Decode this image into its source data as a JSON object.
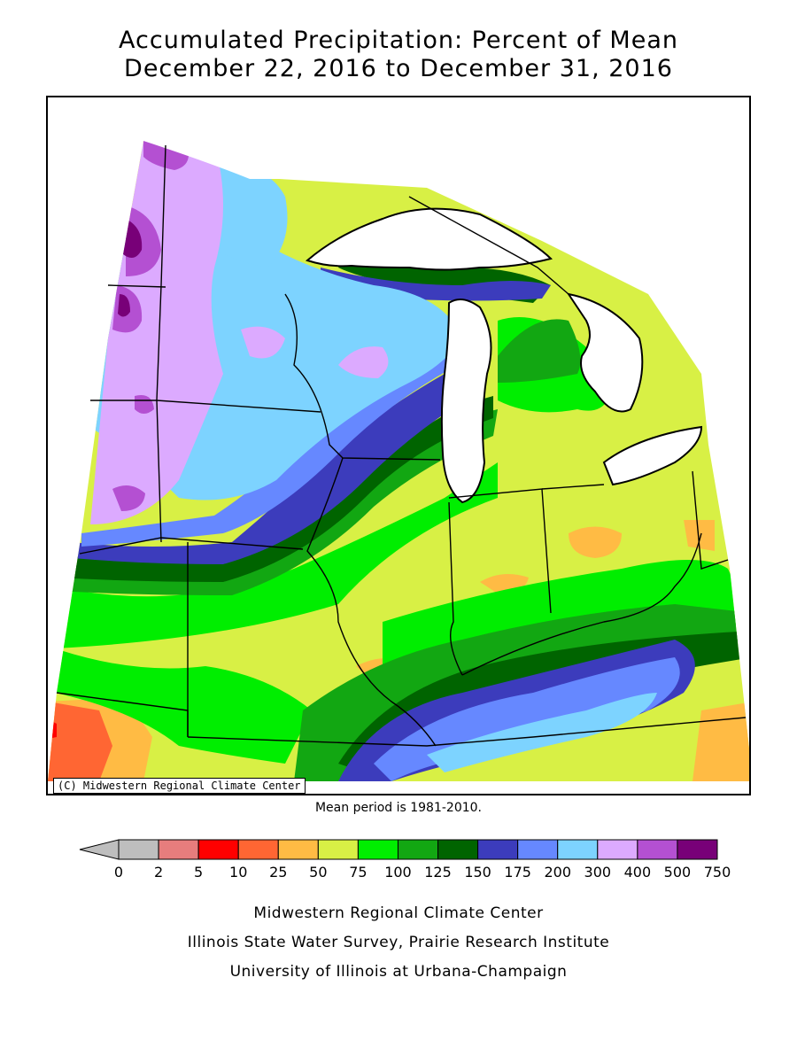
{
  "title": {
    "line1": "Accumulated Precipitation: Percent of Mean",
    "line2": "December 22, 2016 to December 31, 2016"
  },
  "map": {
    "copyright": "(C) Midwestern Regional Climate Center",
    "mean_period_note": "Mean period is 1981-2010."
  },
  "legend": {
    "tick_labels": [
      "0",
      "2",
      "5",
      "10",
      "25",
      "50",
      "75",
      "100",
      "125",
      "150",
      "175",
      "200",
      "300",
      "400",
      "500",
      "750"
    ],
    "bins": [
      {
        "range": "0-2",
        "color": "#bebebe"
      },
      {
        "range": "2-5",
        "color": "#e77d7d"
      },
      {
        "range": "5-10",
        "color": "#ff0000"
      },
      {
        "range": "10-25",
        "color": "#ff6633"
      },
      {
        "range": "25-50",
        "color": "#ffbb44"
      },
      {
        "range": "50-75",
        "color": "#d8f045"
      },
      {
        "range": "75-100",
        "color": "#00ee00"
      },
      {
        "range": "100-125",
        "color": "#12a712"
      },
      {
        "range": "125-150",
        "color": "#006400"
      },
      {
        "range": "150-175",
        "color": "#3c3cbc"
      },
      {
        "range": "175-200",
        "color": "#6688ff"
      },
      {
        "range": "200-300",
        "color": "#7dd3ff"
      },
      {
        "range": "300-400",
        "color": "#dcaaff"
      },
      {
        "range": "400-500",
        "color": "#b450d2"
      },
      {
        "range": "500-750",
        "color": "#780078"
      }
    ],
    "below_min_color": "#bebebe"
  },
  "credits": {
    "line1": "Midwestern Regional Climate Center",
    "line2": "Illinois State Water Survey, Prairie Research Institute",
    "line3": "University of Illinois at Urbana-Champaign"
  }
}
